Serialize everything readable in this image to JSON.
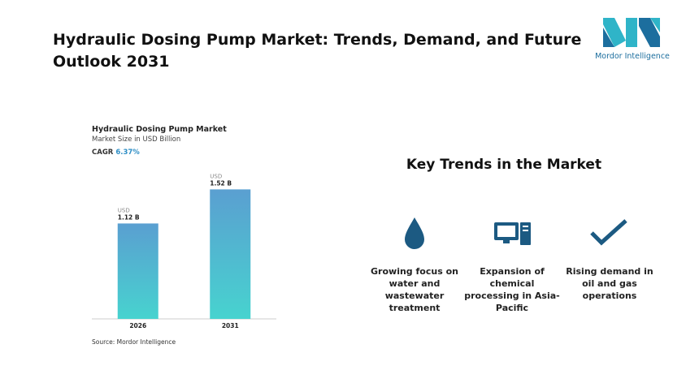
{
  "header": {
    "title": "Hydraulic Dosing Pump Market: Trends, Demand, and Future Outlook 2031",
    "logo_text": "Mordor Intelligence"
  },
  "chart_data": {
    "type": "bar",
    "title": "Hydraulic Dosing Pump Market",
    "subtitle": "Market Size in USD Billion",
    "cagr_label": "CAGR",
    "cagr_value": "6.37%",
    "categories": [
      "2026",
      "2031"
    ],
    "values": [
      1.12,
      1.52
    ],
    "value_units": [
      "USD",
      "USD"
    ],
    "value_labels": [
      "1.12 B",
      "1.52 B"
    ],
    "gradient": [
      "#5a9fd1",
      "#47d3cf"
    ],
    "ylim": [
      0,
      2
    ]
  },
  "source": "Source: Mordor Intelligence",
  "trends": {
    "title": "Key Trends in the Market",
    "items": [
      "Growing focus on water and wastewater treatment",
      "Expansion of chemical processing in Asia-Pacific",
      "Rising demand in oil and gas operations"
    ]
  }
}
